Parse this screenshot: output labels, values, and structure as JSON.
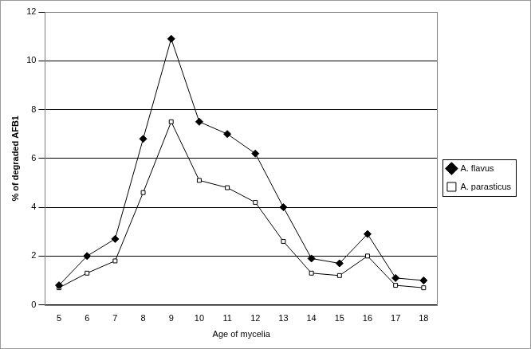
{
  "chart_data": {
    "type": "line",
    "x_label": "Age of mycelia",
    "y_label": "% of degraded AFB1",
    "categories": [
      5,
      6,
      7,
      8,
      9,
      10,
      11,
      12,
      13,
      14,
      15,
      16,
      17,
      18
    ],
    "series": [
      {
        "name": "A. flavus",
        "color": "#000000",
        "marker": "diamond",
        "values": [
          0.8,
          2.0,
          2.7,
          6.8,
          10.9,
          7.5,
          7.0,
          6.2,
          4.0,
          1.9,
          1.7,
          2.9,
          1.1,
          1.0
        ]
      },
      {
        "name": "A. parasticus",
        "color": "#000000",
        "marker": "square-open",
        "values": [
          0.7,
          1.3,
          1.8,
          4.6,
          7.5,
          5.1,
          4.8,
          4.2,
          2.6,
          1.3,
          1.2,
          2.0,
          0.8,
          0.7
        ]
      }
    ],
    "ylim": [
      0,
      12
    ],
    "yticks": [
      0,
      2,
      4,
      6,
      8,
      10,
      12
    ],
    "grid": true,
    "legend": "right"
  }
}
